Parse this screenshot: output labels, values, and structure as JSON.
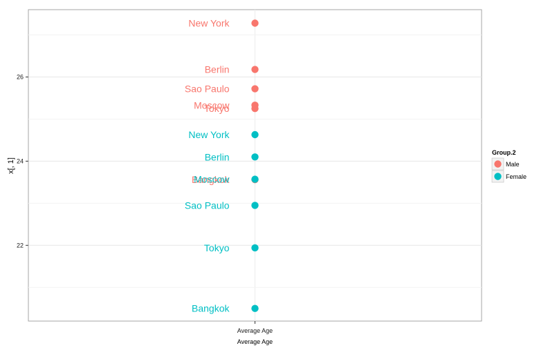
{
  "chart_data": {
    "type": "scatter",
    "xlabel": "Average Age",
    "ylabel": "x[, 1]",
    "categories": [
      "Average Age"
    ],
    "ylim": [
      20.2,
      27.6
    ],
    "yticks": [
      22,
      24,
      26
    ],
    "ytick_labels": [
      "22",
      "24",
      "26"
    ],
    "grid": true,
    "legend_title": "Group.2",
    "legend_position": "right",
    "series": [
      {
        "name": "Male",
        "color": "#F8766D",
        "points": [
          {
            "label": "New York",
            "y": 27.28
          },
          {
            "label": "Berlin",
            "y": 26.18
          },
          {
            "label": "Sao Paulo",
            "y": 25.72
          },
          {
            "label": "Moscow",
            "y": 25.33
          },
          {
            "label": "Tokyo",
            "y": 25.25
          },
          {
            "label": "Bangkok",
            "y": 23.56
          }
        ]
      },
      {
        "name": "Female",
        "color": "#00BFC4",
        "points": [
          {
            "label": "New York",
            "y": 24.63
          },
          {
            "label": "Berlin",
            "y": 24.1
          },
          {
            "label": "Moscow",
            "y": 23.57
          },
          {
            "label": "Sao Paulo",
            "y": 22.95
          },
          {
            "label": "Tokyo",
            "y": 21.94
          },
          {
            "label": "Bangkok",
            "y": 20.5
          }
        ]
      }
    ]
  }
}
